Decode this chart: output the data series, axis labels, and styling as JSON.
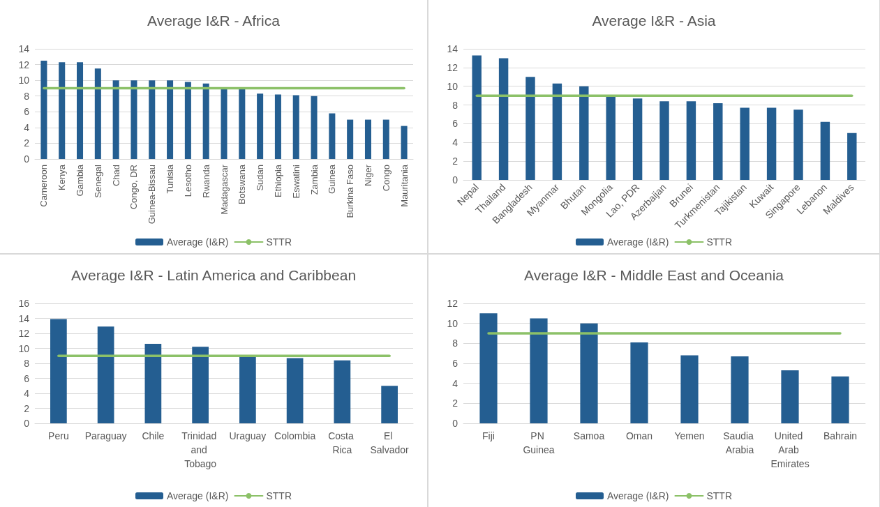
{
  "chart_data": [
    {
      "type": "bar",
      "title": "Average I&R - Africa",
      "categories": [
        "Cameroon",
        "Kenya",
        "Gambia",
        "Senegal",
        "Chad",
        "Congo, DR",
        "Guinea-Bissau",
        "Tunisia",
        "Lesotho",
        "Rwanda",
        "Madagascar",
        "Botswana",
        "Sudan",
        "Ethiopia",
        "Eswatini",
        "Zambia",
        "Guinea",
        "Burkina Faso",
        "Niger",
        "Congo",
        "Mauritania"
      ],
      "series": [
        {
          "name": "Average (I&R)",
          "color": "#245e91",
          "values": [
            12.5,
            12.3,
            12.3,
            11.5,
            10,
            10,
            10,
            10,
            9.8,
            9.6,
            9,
            8.9,
            8.3,
            8.2,
            8.1,
            8,
            5.8,
            5,
            5,
            5,
            4.2
          ]
        },
        {
          "name": "STTR",
          "type": "line",
          "color": "#8cc168",
          "values": [
            9,
            9,
            9,
            9,
            9,
            9,
            9,
            9,
            9,
            9,
            9,
            9,
            9,
            9,
            9,
            9,
            9,
            9,
            9,
            9,
            9
          ]
        }
      ],
      "ylim": [
        0,
        14
      ],
      "yticks": [
        0,
        2,
        4,
        6,
        8,
        10,
        12,
        14
      ],
      "grid": "y",
      "legend": "bottom",
      "marker": "none",
      "line_style": "solid"
    },
    {
      "type": "bar",
      "title": "Average I&R - Asia",
      "categories": [
        "Nepal",
        "Thailand",
        "Bangladesh",
        "Myanmar",
        "Bhutan",
        "Mongolia",
        "Lao, PDR",
        "Azerbaijan",
        "Brunei",
        "Turkmenistan",
        "Tajikistan",
        "Kuwait",
        "Singapore",
        "Lebanon",
        "Maldives"
      ],
      "series": [
        {
          "name": "Average (I&R)",
          "color": "#245e91",
          "values": [
            13.3,
            13,
            11,
            10.3,
            10,
            9,
            8.7,
            8.4,
            8.4,
            8.2,
            7.7,
            7.7,
            7.5,
            6.2,
            5
          ]
        },
        {
          "name": "STTR",
          "type": "line",
          "color": "#8cc168",
          "values": [
            9,
            9,
            9,
            9,
            9,
            9,
            9,
            9,
            9,
            9,
            9,
            9,
            9,
            9,
            9
          ]
        }
      ],
      "ylim": [
        0,
        14
      ],
      "yticks": [
        0,
        2,
        4,
        6,
        8,
        10,
        12,
        14
      ],
      "grid": "y",
      "legend": "bottom",
      "marker": "none",
      "line_style": "solid"
    },
    {
      "type": "bar",
      "title": "Average I&R - Latin America and Caribbean",
      "categories": [
        "Peru",
        "Paraguay",
        "Chile",
        "Trinidad and Tobago",
        "Uraguay",
        "Colombia",
        "Costa Rica",
        "El Salvador"
      ],
      "series": [
        {
          "name": "Average (I&R)",
          "color": "#245e91",
          "values": [
            13.9,
            12.9,
            10.6,
            10.2,
            8.9,
            8.7,
            8.4,
            5
          ]
        },
        {
          "name": "STTR",
          "type": "line",
          "color": "#8cc168",
          "values": [
            9,
            9,
            9,
            9,
            9,
            9,
            9,
            9
          ]
        }
      ],
      "ylim": [
        0,
        16
      ],
      "yticks": [
        0,
        2,
        4,
        6,
        8,
        10,
        12,
        14,
        16
      ],
      "grid": "y",
      "legend": "bottom",
      "marker": "none",
      "line_style": "solid"
    },
    {
      "type": "bar",
      "title": "Average I&R - Middle East and Oceania",
      "categories": [
        "Fiji",
        "PN Guinea",
        "Samoa",
        "Oman",
        "Yemen",
        "Saudia Arabia",
        "United Arab Emirates",
        "Bahrain"
      ],
      "series": [
        {
          "name": "Average (I&R)",
          "color": "#245e91",
          "values": [
            11,
            10.5,
            10,
            8.1,
            6.8,
            6.7,
            5.3,
            4.7
          ]
        },
        {
          "name": "STTR",
          "type": "line",
          "color": "#8cc168",
          "values": [
            9,
            9,
            9,
            9,
            9,
            9,
            9,
            9
          ]
        }
      ],
      "ylim": [
        0,
        12
      ],
      "yticks": [
        0,
        2,
        4,
        6,
        8,
        10,
        12
      ],
      "grid": "y",
      "legend": "bottom",
      "marker": "none",
      "line_style": "solid"
    }
  ]
}
